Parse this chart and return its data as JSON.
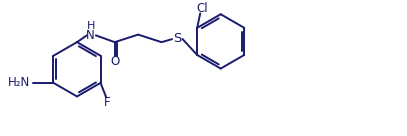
{
  "bg_color": "#ffffff",
  "line_color": "#1a1a6e",
  "line_width": 1.4,
  "font_size": 8.5,
  "figsize": [
    4.07,
    1.36
  ],
  "dpi": 100,
  "xlim": [
    0,
    10.5
  ],
  "ylim": [
    0,
    3.5
  ]
}
